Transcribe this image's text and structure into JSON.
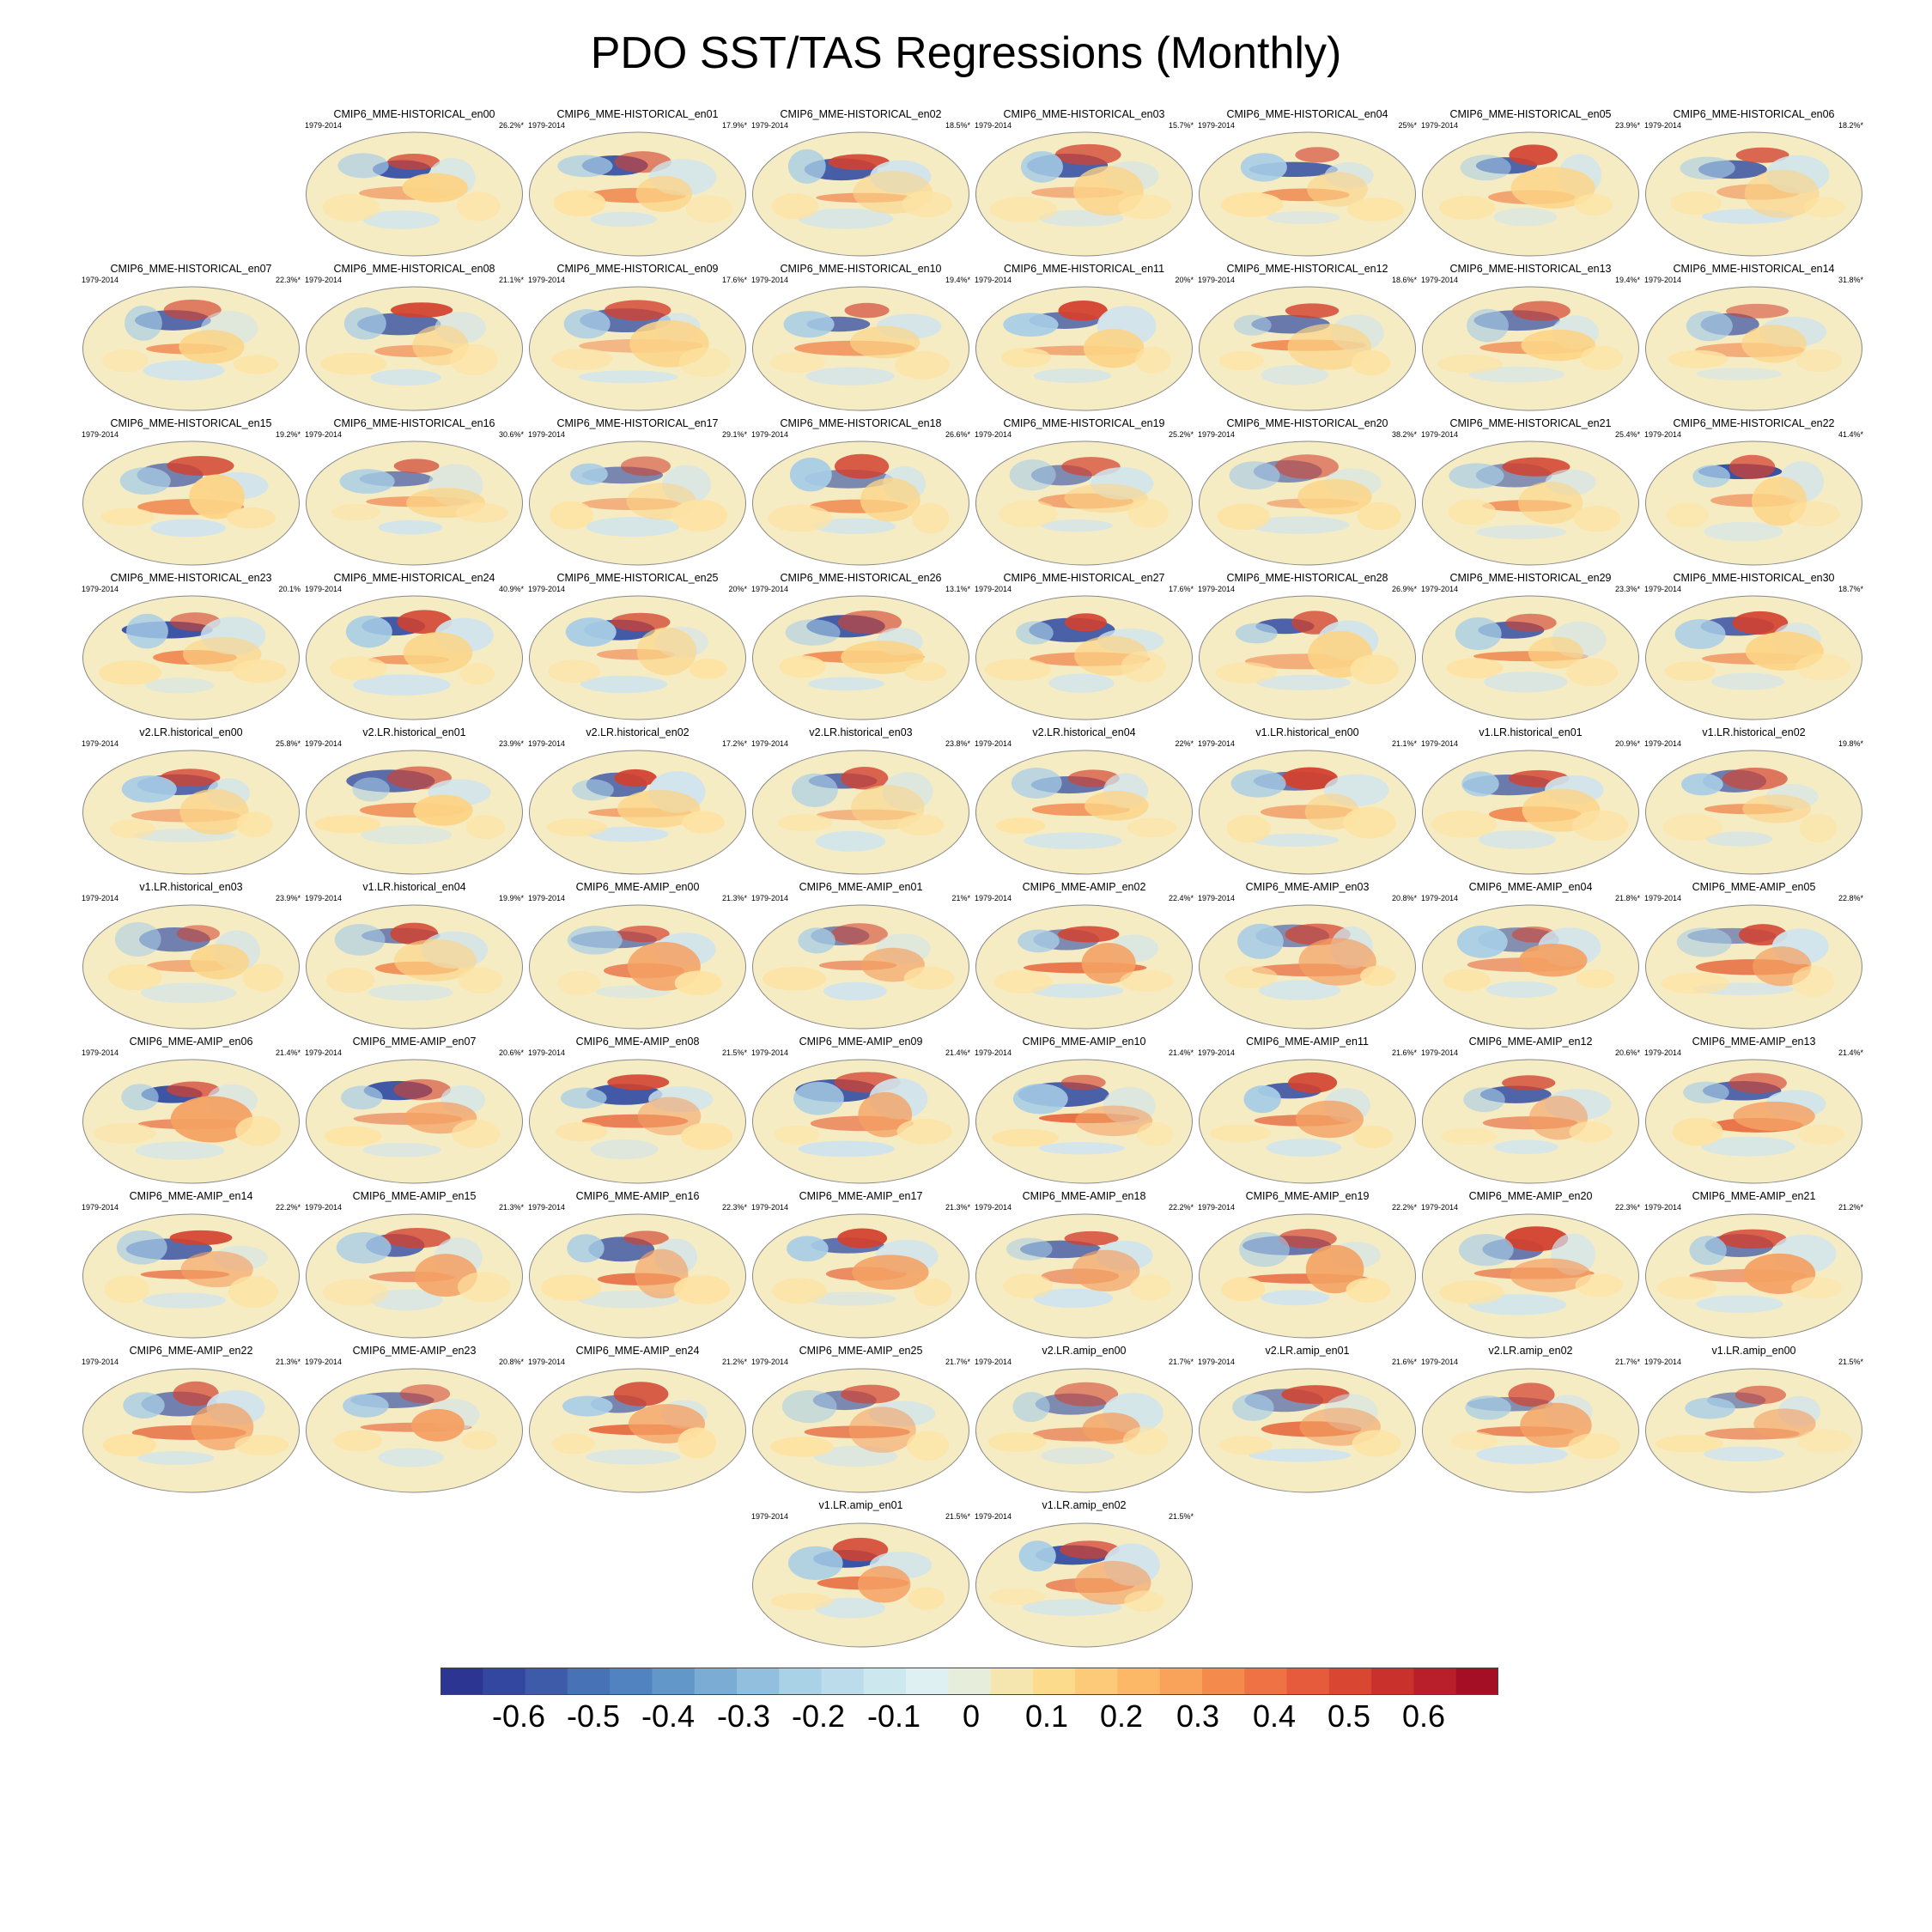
{
  "chart_data": {
    "type": "heatmap",
    "title": "PDO SST/TAS Regressions (Monthly)",
    "period": "1979-2014",
    "colorbar": {
      "tick_labels": [
        "-0.6",
        "-0.5",
        "-0.4",
        "-0.3",
        "-0.2",
        "-0.1",
        "0",
        "0.1",
        "0.2",
        "0.3",
        "0.4",
        "0.5",
        "0.6"
      ],
      "colors": [
        "#2c3592",
        "#3447a0",
        "#3d5ba8",
        "#4772b5",
        "#5083bf",
        "#6198c9",
        "#7aacd4",
        "#92bfdd",
        "#a9d2e6",
        "#bcdceb",
        "#cde7ef",
        "#dff0f3",
        "#e6eedb",
        "#f5e6b0",
        "#fddb8c",
        "#fdca79",
        "#fcb767",
        "#f9a25a",
        "#f58a4d",
        "#ee7244",
        "#e55b3c",
        "#d94733",
        "#c9312c",
        "#b81f2a",
        "#a50f26"
      ]
    },
    "panels": [
      {
        "name": "CMIP6_MME-HISTORICAL_en00",
        "years": "1979-2014",
        "pct": "26.2%*"
      },
      {
        "name": "CMIP6_MME-HISTORICAL_en01",
        "years": "1979-2014",
        "pct": "17.9%*"
      },
      {
        "name": "CMIP6_MME-HISTORICAL_en02",
        "years": "1979-2014",
        "pct": "18.5%*"
      },
      {
        "name": "CMIP6_MME-HISTORICAL_en03",
        "years": "1979-2014",
        "pct": "15.7%*"
      },
      {
        "name": "CMIP6_MME-HISTORICAL_en04",
        "years": "1979-2014",
        "pct": "25%*"
      },
      {
        "name": "CMIP6_MME-HISTORICAL_en05",
        "years": "1979-2014",
        "pct": "23.9%*"
      },
      {
        "name": "CMIP6_MME-HISTORICAL_en06",
        "years": "1979-2014",
        "pct": "18.2%*"
      },
      {
        "name": "CMIP6_MME-HISTORICAL_en07",
        "years": "1979-2014",
        "pct": "22.3%*"
      },
      {
        "name": "CMIP6_MME-HISTORICAL_en08",
        "years": "1979-2014",
        "pct": "21.1%*"
      },
      {
        "name": "CMIP6_MME-HISTORICAL_en09",
        "years": "1979-2014",
        "pct": "17.6%*"
      },
      {
        "name": "CMIP6_MME-HISTORICAL_en10",
        "years": "1979-2014",
        "pct": "19.4%*"
      },
      {
        "name": "CMIP6_MME-HISTORICAL_en11",
        "years": "1979-2014",
        "pct": "20%*"
      },
      {
        "name": "CMIP6_MME-HISTORICAL_en12",
        "years": "1979-2014",
        "pct": "18.6%*"
      },
      {
        "name": "CMIP6_MME-HISTORICAL_en13",
        "years": "1979-2014",
        "pct": "19.4%*"
      },
      {
        "name": "CMIP6_MME-HISTORICAL_en14",
        "years": "1979-2014",
        "pct": "31.8%*"
      },
      {
        "name": "CMIP6_MME-HISTORICAL_en15",
        "years": "1979-2014",
        "pct": "19.2%*"
      },
      {
        "name": "CMIP6_MME-HISTORICAL_en16",
        "years": "1979-2014",
        "pct": "30.6%*"
      },
      {
        "name": "CMIP6_MME-HISTORICAL_en17",
        "years": "1979-2014",
        "pct": "29.1%*"
      },
      {
        "name": "CMIP6_MME-HISTORICAL_en18",
        "years": "1979-2014",
        "pct": "26.6%*"
      },
      {
        "name": "CMIP6_MME-HISTORICAL_en19",
        "years": "1979-2014",
        "pct": "25.2%*"
      },
      {
        "name": "CMIP6_MME-HISTORICAL_en20",
        "years": "1979-2014",
        "pct": "38.2%*"
      },
      {
        "name": "CMIP6_MME-HISTORICAL_en21",
        "years": "1979-2014",
        "pct": "25.4%*"
      },
      {
        "name": "CMIP6_MME-HISTORICAL_en22",
        "years": "1979-2014",
        "pct": "41.4%*"
      },
      {
        "name": "CMIP6_MME-HISTORICAL_en23",
        "years": "1979-2014",
        "pct": "20.1%"
      },
      {
        "name": "CMIP6_MME-HISTORICAL_en24",
        "years": "1979-2014",
        "pct": "40.9%*"
      },
      {
        "name": "CMIP6_MME-HISTORICAL_en25",
        "years": "1979-2014",
        "pct": "20%*"
      },
      {
        "name": "CMIP6_MME-HISTORICAL_en26",
        "years": "1979-2014",
        "pct": "13.1%*"
      },
      {
        "name": "CMIP6_MME-HISTORICAL_en27",
        "years": "1979-2014",
        "pct": "17.6%*"
      },
      {
        "name": "CMIP6_MME-HISTORICAL_en28",
        "years": "1979-2014",
        "pct": "26.9%*"
      },
      {
        "name": "CMIP6_MME-HISTORICAL_en29",
        "years": "1979-2014",
        "pct": "23.3%*"
      },
      {
        "name": "CMIP6_MME-HISTORICAL_en30",
        "years": "1979-2014",
        "pct": "18.7%*"
      },
      {
        "name": "v2.LR.historical_en00",
        "years": "1979-2014",
        "pct": "25.8%*"
      },
      {
        "name": "v2.LR.historical_en01",
        "years": "1979-2014",
        "pct": "23.9%*"
      },
      {
        "name": "v2.LR.historical_en02",
        "years": "1979-2014",
        "pct": "17.2%*"
      },
      {
        "name": "v2.LR.historical_en03",
        "years": "1979-2014",
        "pct": "23.8%*"
      },
      {
        "name": "v2.LR.historical_en04",
        "years": "1979-2014",
        "pct": "22%*"
      },
      {
        "name": "v1.LR.historical_en00",
        "years": "1979-2014",
        "pct": "21.1%*"
      },
      {
        "name": "v1.LR.historical_en01",
        "years": "1979-2014",
        "pct": "20.9%*"
      },
      {
        "name": "v1.LR.historical_en02",
        "years": "1979-2014",
        "pct": "19.8%*"
      },
      {
        "name": "v1.LR.historical_en03",
        "years": "1979-2014",
        "pct": "23.9%*"
      },
      {
        "name": "v1.LR.historical_en04",
        "years": "1979-2014",
        "pct": "19.9%*"
      },
      {
        "name": "CMIP6_MME-AMIP_en00",
        "years": "1979-2014",
        "pct": "21.3%*"
      },
      {
        "name": "CMIP6_MME-AMIP_en01",
        "years": "1979-2014",
        "pct": "21%*"
      },
      {
        "name": "CMIP6_MME-AMIP_en02",
        "years": "1979-2014",
        "pct": "22.4%*"
      },
      {
        "name": "CMIP6_MME-AMIP_en03",
        "years": "1979-2014",
        "pct": "20.8%*"
      },
      {
        "name": "CMIP6_MME-AMIP_en04",
        "years": "1979-2014",
        "pct": "21.8%*"
      },
      {
        "name": "CMIP6_MME-AMIP_en05",
        "years": "1979-2014",
        "pct": "22.8%*"
      },
      {
        "name": "CMIP6_MME-AMIP_en06",
        "years": "1979-2014",
        "pct": "21.4%*"
      },
      {
        "name": "CMIP6_MME-AMIP_en07",
        "years": "1979-2014",
        "pct": "20.6%*"
      },
      {
        "name": "CMIP6_MME-AMIP_en08",
        "years": "1979-2014",
        "pct": "21.5%*"
      },
      {
        "name": "CMIP6_MME-AMIP_en09",
        "years": "1979-2014",
        "pct": "21.4%*"
      },
      {
        "name": "CMIP6_MME-AMIP_en10",
        "years": "1979-2014",
        "pct": "21.4%*"
      },
      {
        "name": "CMIP6_MME-AMIP_en11",
        "years": "1979-2014",
        "pct": "21.6%*"
      },
      {
        "name": "CMIP6_MME-AMIP_en12",
        "years": "1979-2014",
        "pct": "20.6%*"
      },
      {
        "name": "CMIP6_MME-AMIP_en13",
        "years": "1979-2014",
        "pct": "21.4%*"
      },
      {
        "name": "CMIP6_MME-AMIP_en14",
        "years": "1979-2014",
        "pct": "22.2%*"
      },
      {
        "name": "CMIP6_MME-AMIP_en15",
        "years": "1979-2014",
        "pct": "21.3%*"
      },
      {
        "name": "CMIP6_MME-AMIP_en16",
        "years": "1979-2014",
        "pct": "22.3%*"
      },
      {
        "name": "CMIP6_MME-AMIP_en17",
        "years": "1979-2014",
        "pct": "21.3%*"
      },
      {
        "name": "CMIP6_MME-AMIP_en18",
        "years": "1979-2014",
        "pct": "22.2%*"
      },
      {
        "name": "CMIP6_MME-AMIP_en19",
        "years": "1979-2014",
        "pct": "22.2%*"
      },
      {
        "name": "CMIP6_MME-AMIP_en20",
        "years": "1979-2014",
        "pct": "22.3%*"
      },
      {
        "name": "CMIP6_MME-AMIP_en21",
        "years": "1979-2014",
        "pct": "21.2%*"
      },
      {
        "name": "CMIP6_MME-AMIP_en22",
        "years": "1979-2014",
        "pct": "21.3%*"
      },
      {
        "name": "CMIP6_MME-AMIP_en23",
        "years": "1979-2014",
        "pct": "20.8%*"
      },
      {
        "name": "CMIP6_MME-AMIP_en24",
        "years": "1979-2014",
        "pct": "21.2%*"
      },
      {
        "name": "CMIP6_MME-AMIP_en25",
        "years": "1979-2014",
        "pct": "21.7%*"
      },
      {
        "name": "v2.LR.amip_en00",
        "years": "1979-2014",
        "pct": "21.7%*"
      },
      {
        "name": "v2.LR.amip_en01",
        "years": "1979-2014",
        "pct": "21.6%*"
      },
      {
        "name": "v2.LR.amip_en02",
        "years": "1979-2014",
        "pct": "21.7%*"
      },
      {
        "name": "v1.LR.amip_en00",
        "years": "1979-2014",
        "pct": "21.5%*"
      },
      {
        "name": "v1.LR.amip_en01",
        "years": "1979-2014",
        "pct": "21.5%*"
      },
      {
        "name": "v1.LR.amip_en02",
        "years": "1979-2014",
        "pct": "21.5%*"
      }
    ]
  }
}
